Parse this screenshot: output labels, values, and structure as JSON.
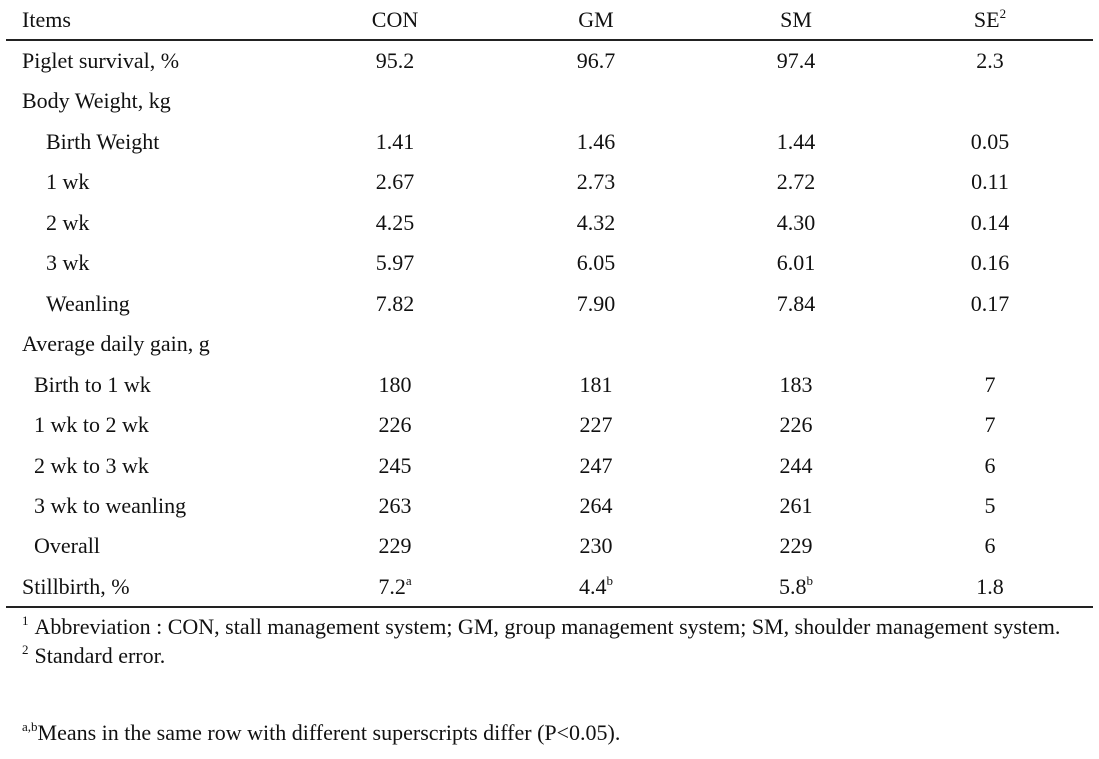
{
  "table": {
    "header": [
      "Items",
      "CON",
      "GM",
      "SM",
      {
        "text": "SE",
        "sup": "2"
      }
    ],
    "rows": [
      {
        "label": "Piglet survival, %",
        "values": [
          "95.2",
          "96.7",
          "97.4",
          "2.3"
        ]
      },
      {
        "label": "Body Weight, kg",
        "rows": [
          {
            "label": "Birth Weight",
            "values": [
              "1.41",
              "1.46",
              "1.44",
              "0.05"
            ]
          },
          {
            "label": "1 wk",
            "values": [
              "2.67",
              "2.73",
              "2.72",
              "0.11"
            ]
          },
          {
            "label": "2 wk",
            "values": [
              "4.25",
              "4.32",
              "4.30",
              "0.14"
            ]
          },
          {
            "label": "3 wk",
            "values": [
              "5.97",
              "6.05",
              "6.01",
              "0.16"
            ]
          },
          {
            "label": "Weanling",
            "values": [
              "7.82",
              "7.90",
              "7.84",
              "0.17"
            ]
          }
        ]
      },
      {
        "label": "Average daily gain, g",
        "rows": [
          {
            "label": "Birth to 1 wk",
            "values": [
              "180",
              "181",
              "183",
              "7"
            ]
          },
          {
            "label": "1 wk to 2 wk",
            "values": [
              "226",
              "227",
              "226",
              "7"
            ]
          },
          {
            "label": "2 wk to 3 wk",
            "values": [
              "245",
              "247",
              "244",
              "6"
            ]
          },
          {
            "label": "3 wk to weanling",
            "values": [
              "263",
              "264",
              "261",
              "5"
            ]
          },
          {
            "label": "Overall",
            "values": [
              "229",
              "230",
              "229",
              "6"
            ]
          }
        ]
      },
      {
        "label": "Stillbirth, %",
        "values": [
          {
            "text": "7.2",
            "sup": "a"
          },
          {
            "text": "4.4",
            "sup": "b"
          },
          {
            "text": "5.8",
            "sup": "b"
          },
          "1.8"
        ]
      }
    ],
    "footnotes": [
      {
        "mark": "1",
        "text": "Abbreviation : CON, stall management system; GM, group management system; SM, shoulder management system."
      },
      {
        "mark": "2",
        "text": "Standard error."
      },
      {
        "mark": "a,b",
        "text": "Means in the same row with different superscripts differ (P<0.05)."
      }
    ]
  }
}
